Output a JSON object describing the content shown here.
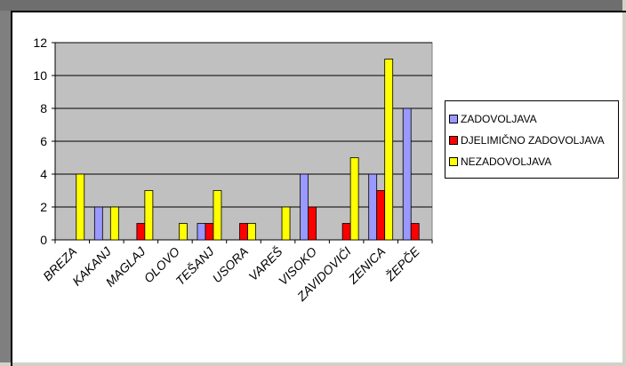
{
  "chart_data": {
    "type": "bar",
    "categories": [
      "BREZA",
      "KAKANJ",
      "MAGLAJ",
      "OLOVO",
      "TEŠANJ",
      "USORA",
      "VAREŠ",
      "VISOKO",
      "ZAVIDOVIĆI",
      "ZENICA",
      "ŽEPČE"
    ],
    "series": [
      {
        "name": "ZADOVOLJAVA",
        "color": "#9999ff",
        "values": [
          0,
          2,
          0,
          0,
          1,
          0,
          0,
          4,
          0,
          4,
          8
        ]
      },
      {
        "name": "DJELIMIČNO ZADOVOLJAVA",
        "color": "#ff0000",
        "values": [
          0,
          0,
          1,
          0,
          1,
          1,
          0,
          2,
          1,
          3,
          1
        ]
      },
      {
        "name": "NEZADOVOLJAVA",
        "color": "#ffff00",
        "values": [
          4,
          2,
          3,
          1,
          3,
          1,
          2,
          0,
          5,
          11,
          0
        ]
      }
    ],
    "ylim": [
      0,
      12
    ],
    "yticks": [
      0,
      2,
      4,
      6,
      8,
      10,
      12
    ],
    "grid": true,
    "plot_background": "#c0c0c0",
    "legend_position": "right"
  }
}
